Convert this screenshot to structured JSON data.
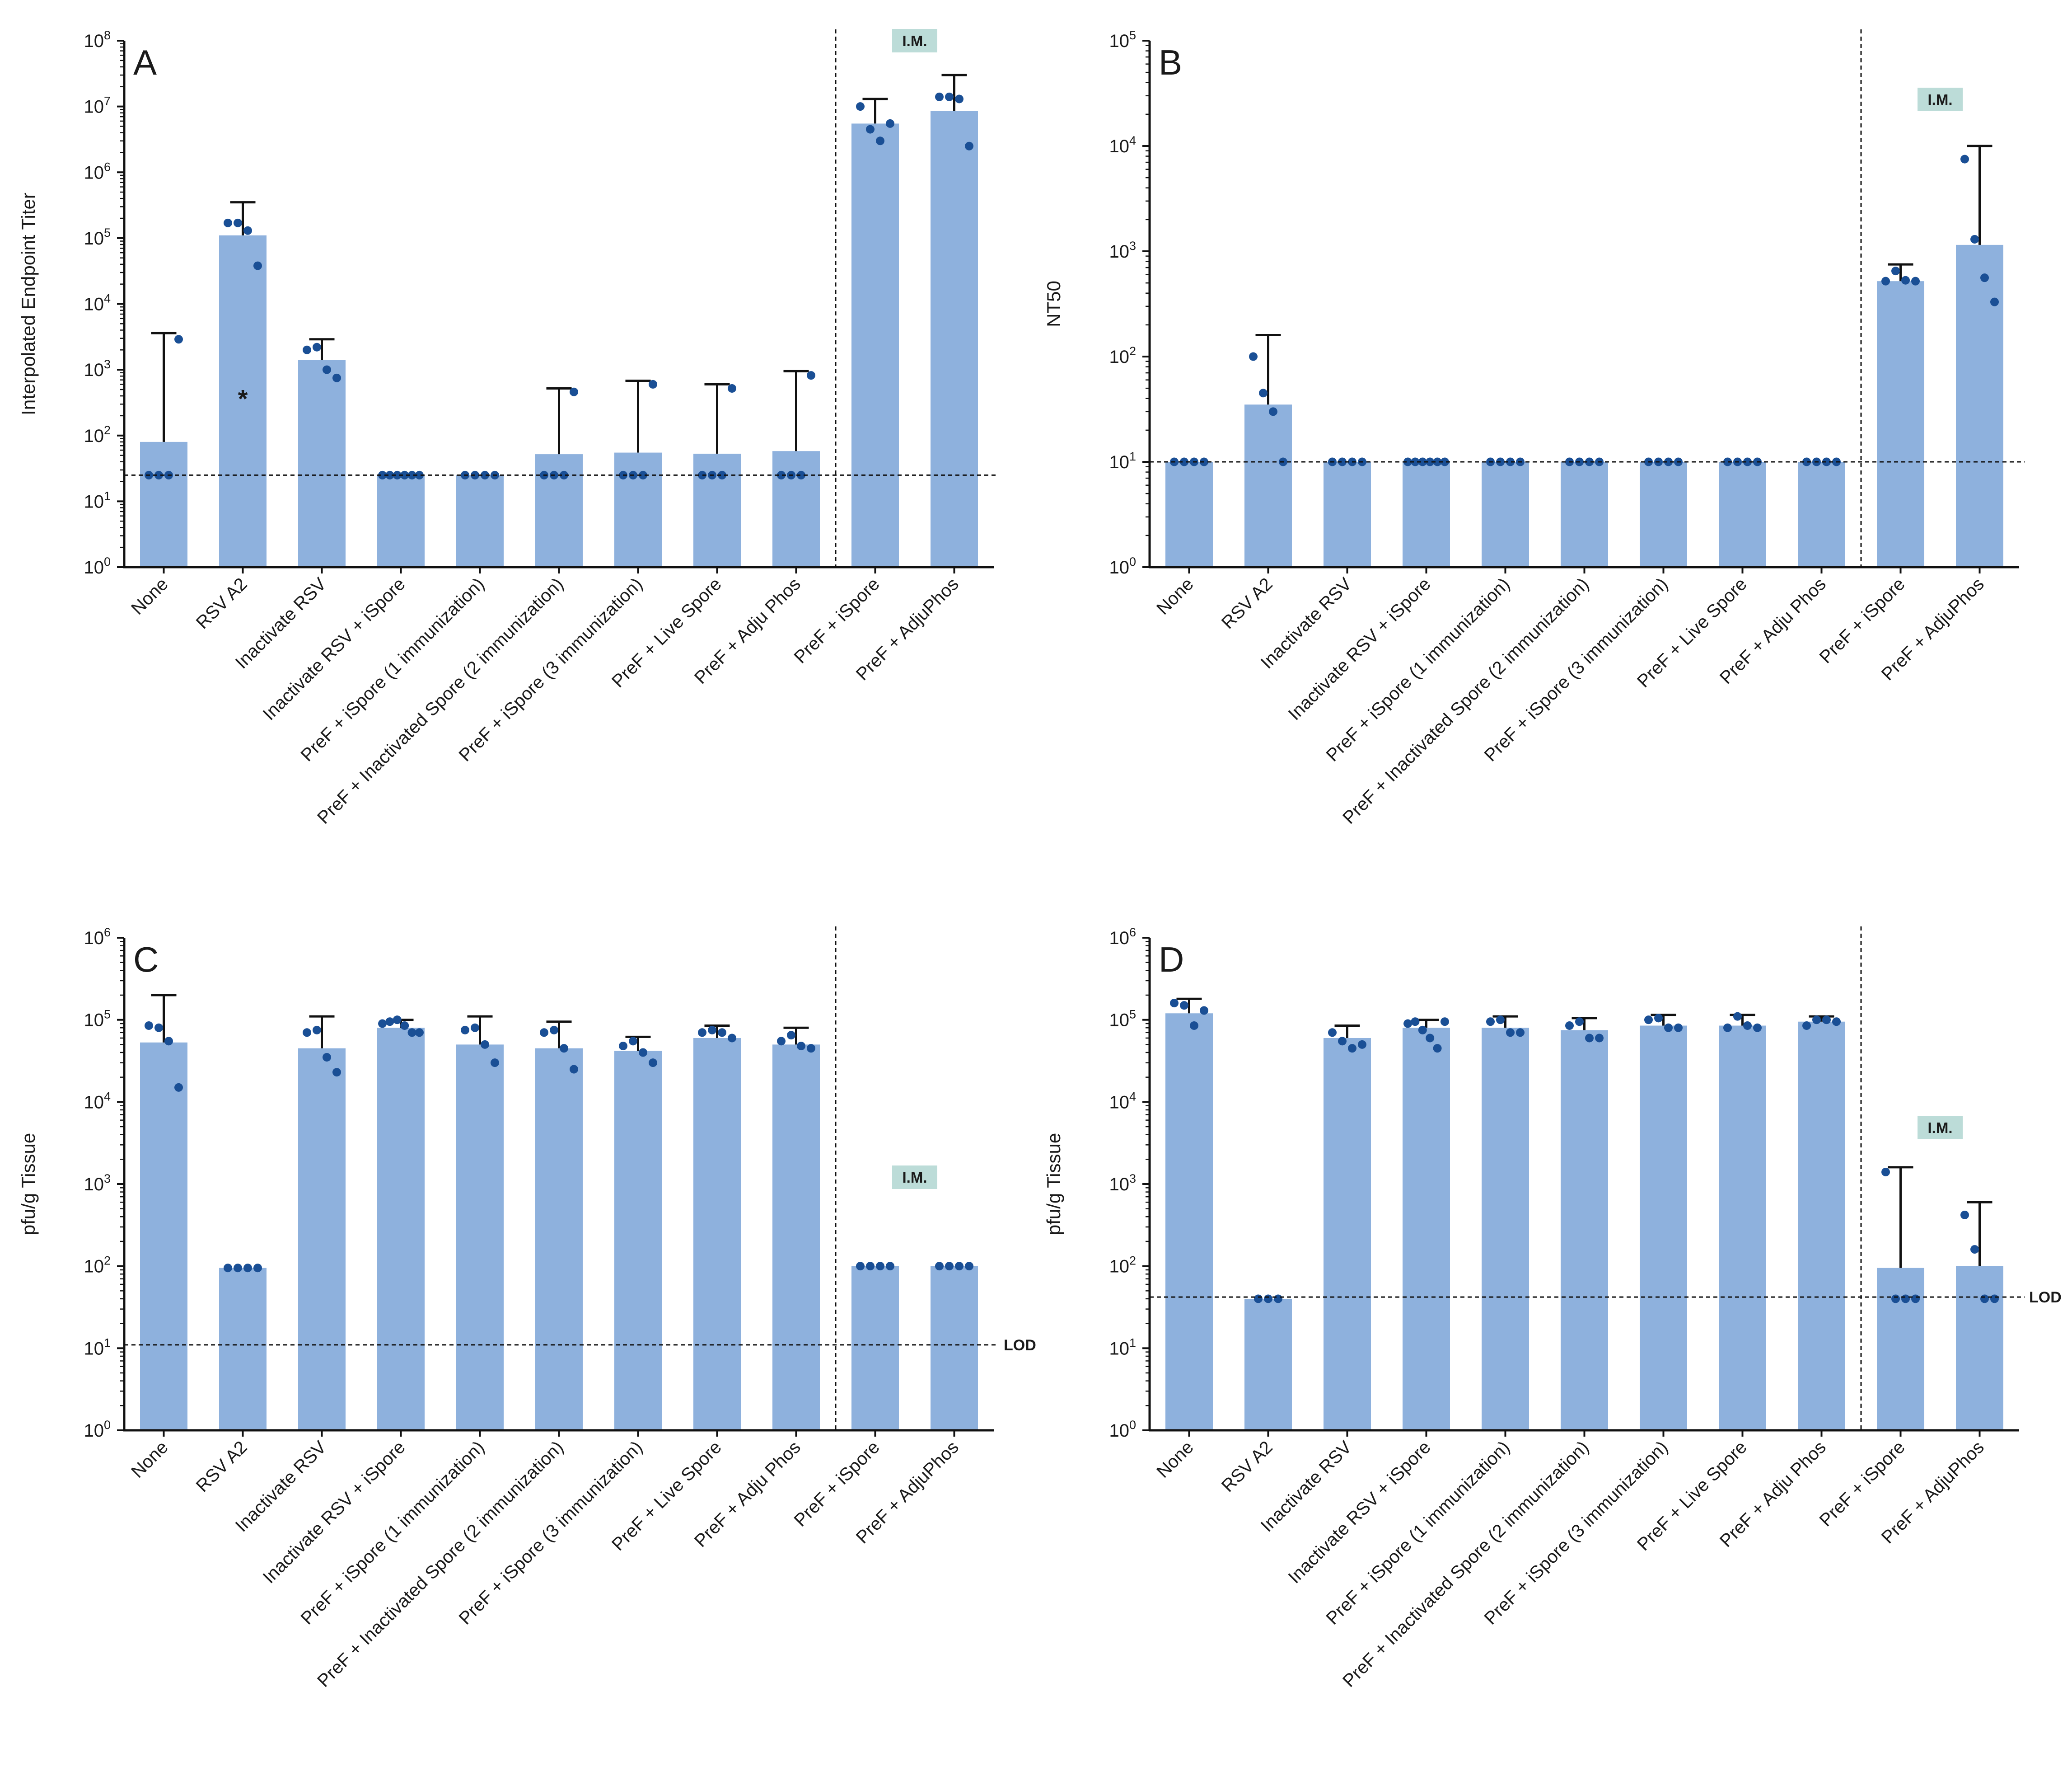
{
  "colors": {
    "bar": "#8eb1dd",
    "point": "#1a4f95",
    "axis": "#1a1a1a",
    "note_bg": "#bcdcd8"
  },
  "categories": [
    "None",
    "RSV A2",
    "Inactivate RSV",
    "Inactivate RSV + iSpore",
    "PreF + iSpore (1 immunization)",
    "PreF + Inactivated Spore (2 immunization)",
    "PreF + iSpore (3 immunization)",
    "PreF + Live Spore",
    "PreF + Adju Phos",
    "PreF + iSpore",
    "PreF + AdjuPhos"
  ],
  "chart_data": [
    {
      "panel": "A",
      "type": "bar",
      "title": "",
      "ylabel": "Interpolated Endpoint Titer",
      "yscale": "log",
      "ylim": [
        1,
        100000000
      ],
      "tick_exponents": [
        "0",
        "1",
        "2",
        "3",
        "4",
        "5",
        "6",
        "7",
        "8"
      ],
      "limit_line": 25,
      "limit_label": "",
      "im_label": "I.M.",
      "im_position": "top",
      "asterisk": {
        "text": "*",
        "category": "RSV A2",
        "value": 380
      },
      "bars": [
        {
          "category": "None",
          "value": 80,
          "err_hi": 3600,
          "points": [
            25,
            25,
            25,
            2900
          ]
        },
        {
          "category": "RSV A2",
          "value": 110000,
          "err_hi": 350000,
          "points": [
            170000,
            170000,
            130000,
            38000
          ]
        },
        {
          "category": "Inactivate RSV",
          "value": 1400,
          "err_hi": 2900,
          "points": [
            2000,
            2200,
            1000,
            750
          ]
        },
        {
          "category": "Inactivate RSV + iSpore",
          "value": 25,
          "err_hi": null,
          "points": [
            25,
            25,
            25,
            25,
            25,
            25
          ]
        },
        {
          "category": "PreF + iSpore (1 immunization)",
          "value": 25,
          "err_hi": null,
          "points": [
            25,
            25,
            25,
            25
          ]
        },
        {
          "category": "PreF + Inactivated Spore (2 immunization)",
          "value": 52,
          "err_hi": 520,
          "points": [
            25,
            25,
            25,
            460
          ]
        },
        {
          "category": "PreF + iSpore (3 immunization)",
          "value": 55,
          "err_hi": 680,
          "points": [
            25,
            25,
            25,
            600
          ]
        },
        {
          "category": "PreF + Live Spore",
          "value": 53,
          "err_hi": 600,
          "points": [
            25,
            25,
            25,
            520
          ]
        },
        {
          "category": "PreF + Adju Phos",
          "value": 58,
          "err_hi": 950,
          "points": [
            25,
            25,
            25,
            820
          ]
        },
        {
          "category": "PreF + iSpore",
          "value": 5500000,
          "err_hi": 13000000,
          "points": [
            10000000,
            4500000,
            3000000,
            5500000
          ]
        },
        {
          "category": "PreF + AdjuPhos",
          "value": 8500000,
          "err_hi": 30000000,
          "points": [
            14000000,
            14000000,
            13000000,
            2500000
          ]
        }
      ]
    },
    {
      "panel": "B",
      "type": "bar",
      "title": "",
      "ylabel": "NT50",
      "yscale": "log",
      "ylim": [
        1,
        100000
      ],
      "tick_exponents": [
        "0",
        "1",
        "2",
        "3",
        "4",
        "5"
      ],
      "limit_line": 10,
      "limit_label": "",
      "im_label": "I.M.",
      "im_position": "upper",
      "asterisk": null,
      "bars": [
        {
          "category": "None",
          "value": 10,
          "err_hi": null,
          "points": [
            10,
            10,
            10,
            10
          ]
        },
        {
          "category": "RSV A2",
          "value": 35,
          "err_hi": 160,
          "points": [
            100,
            45,
            30,
            10
          ]
        },
        {
          "category": "Inactivate RSV",
          "value": 10,
          "err_hi": null,
          "points": [
            10,
            10,
            10,
            10
          ]
        },
        {
          "category": "Inactivate RSV + iSpore",
          "value": 10,
          "err_hi": null,
          "points": [
            10,
            10,
            10,
            10,
            10,
            10
          ]
        },
        {
          "category": "PreF + iSpore (1 immunization)",
          "value": 10,
          "err_hi": null,
          "points": [
            10,
            10,
            10,
            10
          ]
        },
        {
          "category": "PreF + Inactivated Spore (2 immunization)",
          "value": 10,
          "err_hi": null,
          "points": [
            10,
            10,
            10,
            10
          ]
        },
        {
          "category": "PreF + iSpore (3 immunization)",
          "value": 10,
          "err_hi": null,
          "points": [
            10,
            10,
            10,
            10
          ]
        },
        {
          "category": "PreF + Live Spore",
          "value": 10,
          "err_hi": null,
          "points": [
            10,
            10,
            10,
            10
          ]
        },
        {
          "category": "PreF + Adju Phos",
          "value": 10,
          "err_hi": null,
          "points": [
            10,
            10,
            10,
            10
          ]
        },
        {
          "category": "PreF + iSpore",
          "value": 520,
          "err_hi": 750,
          "points": [
            520,
            650,
            530,
            520
          ]
        },
        {
          "category": "PreF + AdjuPhos",
          "value": 1150,
          "err_hi": 10000,
          "points": [
            7500,
            1300,
            560,
            330
          ]
        }
      ]
    },
    {
      "panel": "C",
      "type": "bar",
      "title": "",
      "ylabel": "pfu/g Tissue",
      "yscale": "log",
      "ylim": [
        1,
        1000000
      ],
      "tick_exponents": [
        "0",
        "1",
        "2",
        "3",
        "4",
        "5",
        "6"
      ],
      "limit_line": 11,
      "limit_label": "LOD",
      "im_label": "I.M.",
      "im_position": "middle",
      "asterisk": null,
      "bars": [
        {
          "category": "None",
          "value": 53000,
          "err_hi": 200000,
          "points": [
            85000,
            80000,
            55000,
            15000
          ]
        },
        {
          "category": "RSV A2",
          "value": 95,
          "err_hi": null,
          "points": [
            95,
            95,
            95,
            95
          ]
        },
        {
          "category": "Inactivate RSV",
          "value": 45000,
          "err_hi": 110000,
          "points": [
            70000,
            75000,
            35000,
            23000
          ]
        },
        {
          "category": "Inactivate RSV + iSpore",
          "value": 80000,
          "err_hi": 100000,
          "points": [
            90000,
            95000,
            100000,
            85000,
            70000,
            70000
          ]
        },
        {
          "category": "PreF + iSpore (1 immunization)",
          "value": 50000,
          "err_hi": 110000,
          "points": [
            75000,
            80000,
            50000,
            30000
          ]
        },
        {
          "category": "PreF + Inactivated Spore (2 immunization)",
          "value": 45000,
          "err_hi": 95000,
          "points": [
            70000,
            75000,
            45000,
            25000
          ]
        },
        {
          "category": "PreF + iSpore (3 immunization)",
          "value": 42000,
          "err_hi": 62000,
          "points": [
            48000,
            55000,
            40000,
            30000
          ]
        },
        {
          "category": "PreF + Live Spore",
          "value": 60000,
          "err_hi": 85000,
          "points": [
            70000,
            75000,
            70000,
            60000
          ]
        },
        {
          "category": "PreF + Adju Phos",
          "value": 50000,
          "err_hi": 80000,
          "points": [
            55000,
            65000,
            48000,
            45000
          ]
        },
        {
          "category": "PreF + iSpore",
          "value": 100,
          "err_hi": null,
          "points": [
            100,
            100,
            100,
            100
          ]
        },
        {
          "category": "PreF + AdjuPhos",
          "value": 100,
          "err_hi": null,
          "points": [
            100,
            100,
            100,
            100
          ]
        }
      ]
    },
    {
      "panel": "D",
      "type": "bar",
      "title": "",
      "ylabel": "pfu/g Tissue",
      "yscale": "log",
      "ylim": [
        1,
        1000000
      ],
      "tick_exponents": [
        "0",
        "1",
        "2",
        "3",
        "4",
        "5",
        "6"
      ],
      "limit_line": 42,
      "limit_label": "LOD",
      "im_label": "I.M.",
      "im_position": "middle",
      "asterisk": null,
      "bars": [
        {
          "category": "None",
          "value": 120000,
          "err_hi": 180000,
          "points": [
            160000,
            150000,
            85000,
            130000
          ]
        },
        {
          "category": "RSV A2",
          "value": 40,
          "err_hi": null,
          "points": [
            40,
            40,
            40
          ]
        },
        {
          "category": "Inactivate RSV",
          "value": 60000,
          "err_hi": 85000,
          "points": [
            70000,
            55000,
            45000,
            50000
          ]
        },
        {
          "category": "Inactivate RSV + iSpore",
          "value": 80000,
          "err_hi": 100000,
          "points": [
            90000,
            95000,
            75000,
            60000,
            45000,
            95000
          ]
        },
        {
          "category": "PreF + iSpore (1 immunization)",
          "value": 80000,
          "err_hi": 110000,
          "points": [
            95000,
            100000,
            70000,
            70000
          ]
        },
        {
          "category": "PreF + Inactivated Spore (2 immunization)",
          "value": 75000,
          "err_hi": 105000,
          "points": [
            85000,
            95000,
            60000,
            60000
          ]
        },
        {
          "category": "PreF + iSpore (3 immunization)",
          "value": 85000,
          "err_hi": 115000,
          "points": [
            100000,
            105000,
            80000,
            80000
          ]
        },
        {
          "category": "PreF + Live Spore",
          "value": 85000,
          "err_hi": 115000,
          "points": [
            80000,
            110000,
            85000,
            80000
          ]
        },
        {
          "category": "PreF + Adju Phos",
          "value": 95000,
          "err_hi": 110000,
          "points": [
            85000,
            100000,
            100000,
            95000
          ]
        },
        {
          "category": "PreF + iSpore",
          "value": 95,
          "err_hi": 1600,
          "points": [
            1400,
            40,
            40,
            40
          ]
        },
        {
          "category": "PreF + AdjuPhos",
          "value": 100,
          "err_hi": 600,
          "points": [
            420,
            160,
            40,
            40
          ]
        }
      ]
    }
  ]
}
